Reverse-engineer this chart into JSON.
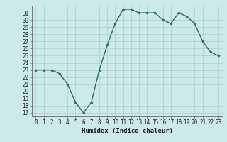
{
  "x": [
    0,
    1,
    2,
    3,
    4,
    5,
    6,
    7,
    8,
    9,
    10,
    11,
    12,
    13,
    14,
    15,
    16,
    17,
    18,
    19,
    20,
    21,
    22,
    23
  ],
  "y": [
    23,
    23,
    23,
    22.5,
    21,
    18.5,
    17,
    18.5,
    23,
    26.5,
    29.5,
    31.5,
    31.5,
    31,
    31,
    31,
    30,
    29.5,
    31,
    30.5,
    29.5,
    27,
    25.5,
    25
  ],
  "line_color": "#2d6b5e",
  "marker": "o",
  "marker_size": 2.0,
  "bg_color": "#cceae7",
  "grid_color": "#aacfcc",
  "xlabel": "Humidex (Indice chaleur)",
  "xlim": [
    -0.5,
    23.5
  ],
  "ylim": [
    16.5,
    32
  ],
  "yticks": [
    17,
    18,
    19,
    20,
    21,
    22,
    23,
    24,
    25,
    26,
    27,
    28,
    29,
    30,
    31
  ],
  "xticks": [
    0,
    1,
    2,
    3,
    4,
    5,
    6,
    7,
    8,
    9,
    10,
    11,
    12,
    13,
    14,
    15,
    16,
    17,
    18,
    19,
    20,
    21,
    22,
    23
  ],
  "tick_fontsize": 5.5,
  "xlabel_fontsize": 6.5,
  "linewidth": 1.0
}
